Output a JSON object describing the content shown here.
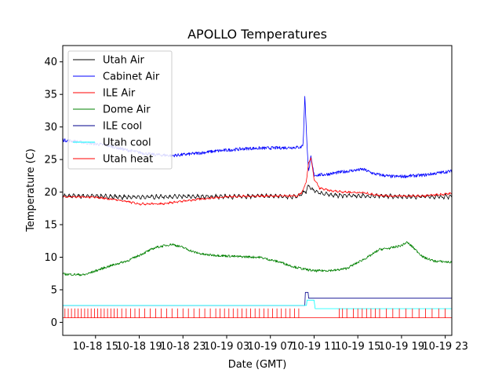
{
  "chart_data": {
    "type": "line",
    "title": "APOLLO Temperatures",
    "xlabel": "Date (GMT)",
    "ylabel": "Temperature (C)",
    "x_unit": "hours since 10-18 12:00 GMT",
    "xlim": [
      0,
      35.6
    ],
    "ylim": [
      -2,
      42.5
    ],
    "yticks": [
      0,
      5,
      10,
      15,
      20,
      25,
      30,
      35,
      40
    ],
    "xticks": [
      {
        "t": 3,
        "label": "10-18 15"
      },
      {
        "t": 7,
        "label": "10-18 19"
      },
      {
        "t": 11,
        "label": "10-18 23"
      },
      {
        "t": 15,
        "label": "10-19 03"
      },
      {
        "t": 19,
        "label": "10-19 07"
      },
      {
        "t": 23,
        "label": "10-19 11"
      },
      {
        "t": 27,
        "label": "10-19 15"
      },
      {
        "t": 31,
        "label": "10-19 19"
      },
      {
        "t": 35,
        "label": "10-19 23"
      }
    ],
    "legend_position": "top-left",
    "series": [
      {
        "name": "Utah Air",
        "color": "#000000",
        "sawtooth": 0.6,
        "noise": 0.15,
        "x": [
          0,
          3,
          6,
          9,
          12,
          15,
          18,
          21.5,
          22.3,
          22.5,
          22.8,
          23.3,
          24,
          25,
          28,
          32,
          35.6
        ],
        "y": [
          19.4,
          19.4,
          19.2,
          19.3,
          19.3,
          19.3,
          19.4,
          19.3,
          20.2,
          21.0,
          20.4,
          20.0,
          19.7,
          19.5,
          19.4,
          19.3,
          19.3
        ]
      },
      {
        "name": "Cabinet Air",
        "color": "#0000ff",
        "sawtooth": 0,
        "noise": 0.25,
        "x": [
          0,
          2,
          4,
          6,
          8,
          10,
          12,
          14,
          17,
          20,
          21.8,
          22.0,
          22.15,
          22.3,
          22.5,
          22.7,
          23.0,
          24,
          26,
          27.5,
          28.5,
          30,
          31,
          33,
          35,
          35.6
        ],
        "y": [
          28.0,
          27.6,
          27.2,
          26.4,
          25.8,
          25.6,
          25.9,
          26.3,
          26.7,
          26.8,
          26.9,
          27.4,
          34.9,
          29.0,
          23.0,
          25.4,
          22.6,
          22.7,
          23.2,
          23.5,
          22.8,
          22.4,
          22.4,
          22.6,
          23.1,
          23.2
        ]
      },
      {
        "name": "ILE Air",
        "color": "#ff0000",
        "sawtooth": 0.2,
        "noise": 0.12,
        "x": [
          0,
          3,
          5,
          7,
          9,
          11,
          13,
          15,
          18,
          21.5,
          22.0,
          22.3,
          22.5,
          22.7,
          23.0,
          23.5,
          24.5,
          26,
          27.5,
          28.5,
          30,
          33,
          35.6
        ],
        "y": [
          19.3,
          19.2,
          18.8,
          18.2,
          18.2,
          18.6,
          19.0,
          19.3,
          19.4,
          19.4,
          20.2,
          21.8,
          24.5,
          25.3,
          22.0,
          20.6,
          20.2,
          20.0,
          19.9,
          19.6,
          19.4,
          19.4,
          19.8
        ]
      },
      {
        "name": "Dome Air",
        "color": "#008000",
        "sawtooth": 0,
        "noise": 0.18,
        "x": [
          0,
          2,
          4,
          6,
          7,
          8.5,
          10,
          11,
          12,
          13,
          14,
          16,
          18,
          19,
          20,
          21,
          22,
          23,
          25,
          26,
          27,
          28,
          29,
          30,
          31,
          31.5,
          32,
          33,
          34,
          35,
          35.6
        ],
        "y": [
          7.4,
          7.3,
          8.5,
          9.5,
          10.3,
          11.5,
          12.0,
          11.5,
          10.8,
          10.4,
          10.3,
          10.1,
          10.0,
          9.6,
          9.2,
          8.6,
          8.2,
          7.9,
          8.0,
          8.3,
          9.2,
          10.1,
          11.2,
          11.4,
          11.8,
          12.3,
          11.6,
          10.0,
          9.4,
          9.3,
          9.2
        ]
      },
      {
        "name": "ILE cool",
        "color": "#00008b",
        "sawtooth": 0,
        "noise": 0,
        "x": [
          0,
          22.15,
          22.2,
          22.45,
          22.5,
          35.6
        ],
        "y": [
          2.6,
          2.6,
          4.6,
          4.6,
          3.7,
          3.7
        ]
      },
      {
        "name": "Utah cool",
        "color": "#00ffff",
        "sawtooth": 0,
        "noise": 0,
        "x": [
          0,
          22.3,
          22.35,
          23.0,
          23.1,
          35.6
        ],
        "y": [
          2.6,
          2.6,
          3.4,
          3.4,
          2.1,
          2.1
        ]
      },
      {
        "name": "Utah heat",
        "color": "#ff0000",
        "sawtooth": 0,
        "noise": 0,
        "baseline": 0.7,
        "pulse_height": 1.4,
        "pulse_times": [
          0.2,
          0.5,
          0.8,
          1.1,
          1.4,
          1.7,
          2.0,
          2.3,
          2.6,
          2.9,
          3.2,
          3.5,
          3.8,
          4.1,
          4.4,
          4.7,
          5.0,
          5.4,
          5.8,
          6.2,
          6.6,
          7.0,
          7.5,
          8.0,
          8.5,
          9.0,
          9.5,
          10.0,
          10.5,
          11.0,
          11.5,
          12.0,
          12.5,
          13.0,
          13.5,
          14.0,
          14.4,
          14.8,
          15.2,
          15.6,
          16.0,
          16.4,
          16.8,
          17.2,
          17.6,
          18.0,
          18.4,
          18.8,
          19.2,
          19.6,
          20.0,
          20.4,
          20.8,
          21.2,
          21.6,
          25.3,
          25.6,
          26.0,
          26.6,
          27.0,
          27.4,
          27.8,
          28.2,
          28.6,
          29.0,
          29.6,
          30.2,
          30.8,
          31.4,
          32.0,
          32.6,
          33.2,
          33.8,
          34.4,
          35.0
        ]
      }
    ]
  }
}
